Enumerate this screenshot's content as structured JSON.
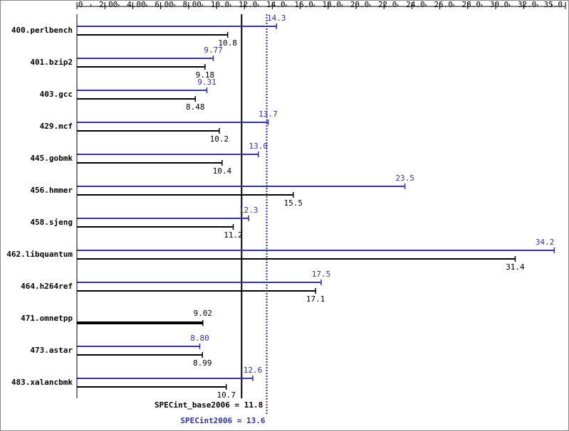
{
  "chart_data": {
    "type": "bar",
    "orientation": "horizontal",
    "categories": [
      "400.perlbench",
      "401.bzip2",
      "403.gcc",
      "429.mcf",
      "445.gobmk",
      "456.hmmer",
      "458.sjeng",
      "462.libquantum",
      "464.h264ref",
      "471.omnetpp",
      "473.astar",
      "483.xalancbmk"
    ],
    "series": [
      {
        "color": "#333399",
        "values": [
          14.3,
          9.77,
          9.31,
          13.7,
          13.0,
          23.5,
          12.3,
          34.2,
          17.5,
          null,
          8.8,
          12.6
        ],
        "value_labels": [
          "14.3",
          "9.77",
          "9.31",
          "13.7",
          "13.0",
          "23.5",
          "12.3",
          "34.2",
          "17.5",
          null,
          "8.80",
          "12.6"
        ]
      },
      {
        "color": "#000000",
        "values": [
          10.8,
          9.18,
          8.48,
          10.2,
          10.4,
          15.5,
          11.2,
          31.4,
          17.1,
          9.02,
          8.99,
          10.7
        ],
        "value_labels": [
          "10.8",
          "9.18",
          "8.48",
          "10.2",
          "10.4",
          "15.5",
          "11.2",
          "31.4",
          "17.1",
          "9.02",
          "8.99",
          "10.7"
        ]
      }
    ],
    "xlim": [
      0,
      35
    ],
    "xticks": [
      0,
      {
        "value": 2,
        "label": "2.00"
      },
      {
        "value": 4,
        "label": "4.00"
      },
      {
        "value": 6,
        "label": "6.00"
      },
      {
        "value": 8,
        "label": "8.00"
      },
      {
        "value": 10,
        "label": "10.0"
      },
      {
        "value": 12,
        "label": "12.0"
      },
      {
        "value": 14,
        "label": "14.0"
      },
      {
        "value": 16,
        "label": "16.0"
      },
      {
        "value": 18,
        "label": "18.0"
      },
      {
        "value": 20,
        "label": "20.0"
      },
      {
        "value": 22,
        "label": "22.0"
      },
      {
        "value": 24,
        "label": "24.0"
      },
      {
        "value": 26,
        "label": "26.0"
      },
      {
        "value": 28,
        "label": "28.0"
      },
      {
        "value": 30,
        "label": "30.0"
      },
      {
        "value": 32,
        "label": "32.0"
      },
      {
        "value": 35,
        "label": "35.0"
      }
    ],
    "reference_lines": [
      {
        "label": "SPECint_base2006 = 11.8",
        "value": 11.8,
        "color": "#000000",
        "style": "solid"
      },
      {
        "label": "SPECint2006 = 13.6",
        "value": 13.6,
        "color": "#333399",
        "style": "dotted"
      }
    ]
  }
}
